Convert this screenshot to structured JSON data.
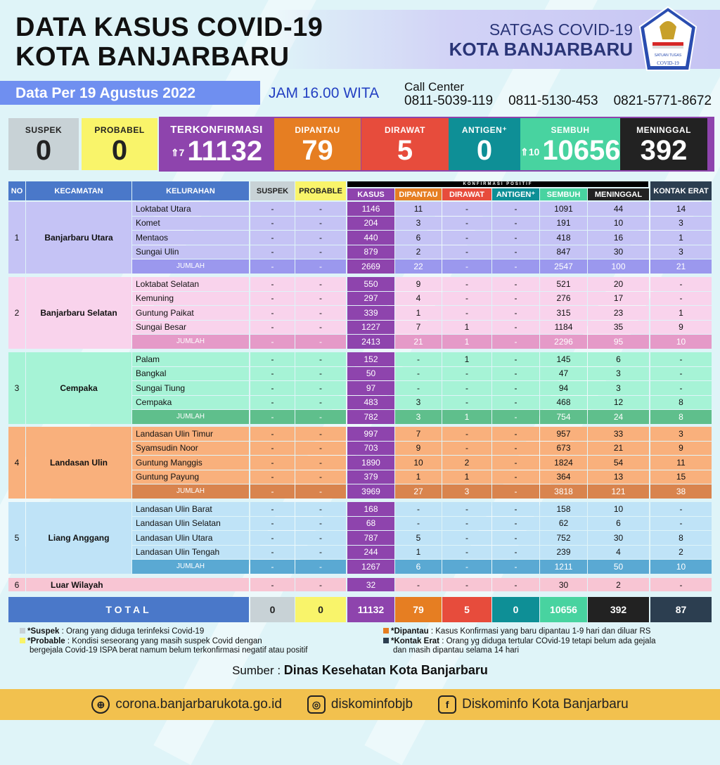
{
  "header": {
    "title_line1": "DATA KASUS COVID-19",
    "title_line2": "KOTA BANJARBARU",
    "satgas_line1": "SATGAS COVID-19",
    "satgas_line2": "KOTA BANJARBARU",
    "logo_text": "SATUAN TUGAS PENANGANAN COVID-19",
    "date": "Data Per 19 Agustus 2022",
    "time": "JAM 16.00 WITA",
    "call_center_label": "Call Center",
    "phones": [
      "0811-5039-119",
      "0811-5130-453",
      "0821-5771-8672"
    ]
  },
  "summary": {
    "suspek": {
      "label": "SUSPEK",
      "value": "0",
      "color": "#c8d2d6"
    },
    "probabel": {
      "label": "PROBABEL",
      "value": "0",
      "color": "#f9f46a"
    },
    "terkonfirmasi": {
      "label": "TERKONFIRMASI",
      "value": "11132",
      "increase": "7",
      "color": "#8e44ad"
    },
    "dipantau": {
      "label": "DIPANTAU",
      "value": "79",
      "color": "#e67e22"
    },
    "dirawat": {
      "label": "DIRAWAT",
      "value": "5",
      "color": "#e74c3c"
    },
    "antigen": {
      "label": "ANTIGEN⁺",
      "value": "0",
      "color": "#0e8f96"
    },
    "sembuh": {
      "label": "SEMBUH",
      "value": "10656",
      "increase": "10",
      "color": "#48d3a0"
    },
    "meninggal": {
      "label": "MENINGGAL",
      "value": "392",
      "color": "#222222"
    }
  },
  "table": {
    "group_header": "KONFIRMASI POSITIF",
    "columns": [
      "NO",
      "KECAMATAN",
      "KELURAHAN",
      "SUSPEK",
      "PROBABLE",
      "KASUS",
      "DIPANTAU",
      "DIRAWAT",
      "ANTIGEN⁺",
      "SEMBUH",
      "MENINGGAL",
      "KONTAK ERAT"
    ],
    "groups": [
      {
        "no": "1",
        "kecamatan": "Banjarbaru Utara",
        "color": "#c5c3f5",
        "jumlah_color": "#9b98ee",
        "rows": [
          {
            "kelurahan": "Loktabat Utara",
            "values": [
              "-",
              "-",
              "1146",
              "11",
              "-",
              "-",
              "1091",
              "44",
              "14"
            ]
          },
          {
            "kelurahan": "Komet",
            "values": [
              "-",
              "-",
              "204",
              "3",
              "-",
              "-",
              "191",
              "10",
              "3"
            ]
          },
          {
            "kelurahan": "Mentaos",
            "values": [
              "-",
              "-",
              "440",
              "6",
              "-",
              "-",
              "418",
              "16",
              "1"
            ]
          },
          {
            "kelurahan": "Sungai Ulin",
            "values": [
              "-",
              "-",
              "879",
              "2",
              "-",
              "-",
              "847",
              "30",
              "3"
            ]
          }
        ],
        "jumlah": {
          "label": "JUMLAH",
          "values": [
            "-",
            "-",
            "2669",
            "22",
            "-",
            "-",
            "2547",
            "100",
            "21"
          ]
        }
      },
      {
        "no": "2",
        "kecamatan": "Banjarbaru Selatan",
        "color": "#f9d3ec",
        "jumlah_color": "#e59ac8",
        "rows": [
          {
            "kelurahan": "Loktabat Selatan",
            "values": [
              "-",
              "-",
              "550",
              "9",
              "-",
              "-",
              "521",
              "20",
              "-"
            ]
          },
          {
            "kelurahan": "Kemuning",
            "values": [
              "-",
              "-",
              "297",
              "4",
              "-",
              "-",
              "276",
              "17",
              "-"
            ]
          },
          {
            "kelurahan": "Guntung Paikat",
            "values": [
              "-",
              "-",
              "339",
              "1",
              "-",
              "-",
              "315",
              "23",
              "1"
            ]
          },
          {
            "kelurahan": "Sungai Besar",
            "values": [
              "-",
              "-",
              "1227",
              "7",
              "1",
              "-",
              "1184",
              "35",
              "9"
            ]
          }
        ],
        "jumlah": {
          "label": "JUMLAH",
          "values": [
            "-",
            "-",
            "2413",
            "21",
            "1",
            "-",
            "2296",
            "95",
            "10"
          ]
        }
      },
      {
        "no": "3",
        "kecamatan": "Cempaka",
        "color": "#a6f3d6",
        "jumlah_color": "#5fbf8c",
        "rows": [
          {
            "kelurahan": "Palam",
            "values": [
              "-",
              "-",
              "152",
              "-",
              "1",
              "-",
              "145",
              "6",
              "-"
            ]
          },
          {
            "kelurahan": "Bangkal",
            "values": [
              "-",
              "-",
              "50",
              "-",
              "-",
              "-",
              "47",
              "3",
              "-"
            ]
          },
          {
            "kelurahan": "Sungai Tiung",
            "values": [
              "-",
              "-",
              "97",
              "-",
              "-",
              "-",
              "94",
              "3",
              "-"
            ]
          },
          {
            "kelurahan": "Cempaka",
            "values": [
              "-",
              "-",
              "483",
              "3",
              "-",
              "-",
              "468",
              "12",
              "8"
            ]
          }
        ],
        "jumlah": {
          "label": "JUMLAH",
          "values": [
            "-",
            "-",
            "782",
            "3",
            "1",
            "-",
            "754",
            "24",
            "8"
          ]
        }
      },
      {
        "no": "4",
        "kecamatan": "Landasan Ulin",
        "color": "#f9b07c",
        "jumlah_color": "#d9844e",
        "rows": [
          {
            "kelurahan": "Landasan Ulin Timur",
            "values": [
              "-",
              "-",
              "997",
              "7",
              "-",
              "-",
              "957",
              "33",
              "3"
            ]
          },
          {
            "kelurahan": "Syamsudin Noor",
            "values": [
              "-",
              "-",
              "703",
              "9",
              "-",
              "-",
              "673",
              "21",
              "9"
            ]
          },
          {
            "kelurahan": "Guntung Manggis",
            "values": [
              "-",
              "-",
              "1890",
              "10",
              "2",
              "-",
              "1824",
              "54",
              "11"
            ]
          },
          {
            "kelurahan": "Guntung Payung",
            "values": [
              "-",
              "-",
              "379",
              "1",
              "1",
              "-",
              "364",
              "13",
              "15"
            ]
          }
        ],
        "jumlah": {
          "label": "JUMLAH",
          "values": [
            "-",
            "-",
            "3969",
            "27",
            "3",
            "-",
            "3818",
            "121",
            "38"
          ]
        }
      },
      {
        "no": "5",
        "kecamatan": "Liang Anggang",
        "color": "#bfe3f7",
        "jumlah_color": "#5aa9d3",
        "rows": [
          {
            "kelurahan": "Landasan Ulin Barat",
            "values": [
              "-",
              "-",
              "168",
              "-",
              "-",
              "-",
              "158",
              "10",
              "-"
            ]
          },
          {
            "kelurahan": "Landasan Ulin Selatan",
            "values": [
              "-",
              "-",
              "68",
              "-",
              "-",
              "-",
              "62",
              "6",
              "-"
            ]
          },
          {
            "kelurahan": "Landasan Ulin Utara",
            "values": [
              "-",
              "-",
              "787",
              "5",
              "-",
              "-",
              "752",
              "30",
              "8"
            ]
          },
          {
            "kelurahan": "Landasan Ulin Tengah",
            "values": [
              "-",
              "-",
              "244",
              "1",
              "-",
              "-",
              "239",
              "4",
              "2"
            ]
          }
        ],
        "jumlah": {
          "label": "JUMLAH",
          "values": [
            "-",
            "-",
            "1267",
            "6",
            "-",
            "-",
            "1211",
            "50",
            "10"
          ]
        }
      }
    ],
    "luar": {
      "no": "6",
      "kecamatan": "Luar Wilayah",
      "color": "#f8c5d3",
      "values": [
        "-",
        "-",
        "32",
        "-",
        "-",
        "-",
        "30",
        "2",
        "-"
      ]
    },
    "total": {
      "label": "TOTAL",
      "values": [
        "0",
        "0",
        "11132",
        "79",
        "5",
        "0",
        "10656",
        "392",
        "87"
      ]
    }
  },
  "legend": {
    "suspek_term": "*Suspek",
    "suspek_text": " : Orang yang diduga terinfeksi Covid-19",
    "probable_term": "*Probable",
    "probable_text": " : Kondisi seseorang yang masih suspek Covid dengan",
    "probable_text2": "bergejala Covid-19 ISPA berat namum belum terkonfirmasi negatif atau positif",
    "dipantau_term": "*Dipantau",
    "dipantau_text": " : Kasus Konfirmasi yang baru dipantau 1-9 hari dan diluar RS",
    "kontak_term": "*Kontak Erat",
    "kontak_text": " : Orang yg diduga tertular COvid-19 tetapi belum ada gejala",
    "kontak_text2": "dan masih dipantau selama 14 hari"
  },
  "source": {
    "label": "Sumber : ",
    "value": "Dinas Kesehatan Kota Banjarbaru"
  },
  "footer": {
    "website": "corona.banjarbarukota.go.id",
    "instagram": "diskominfobjb",
    "facebook": "Diskominfo Kota Banjarbaru"
  }
}
